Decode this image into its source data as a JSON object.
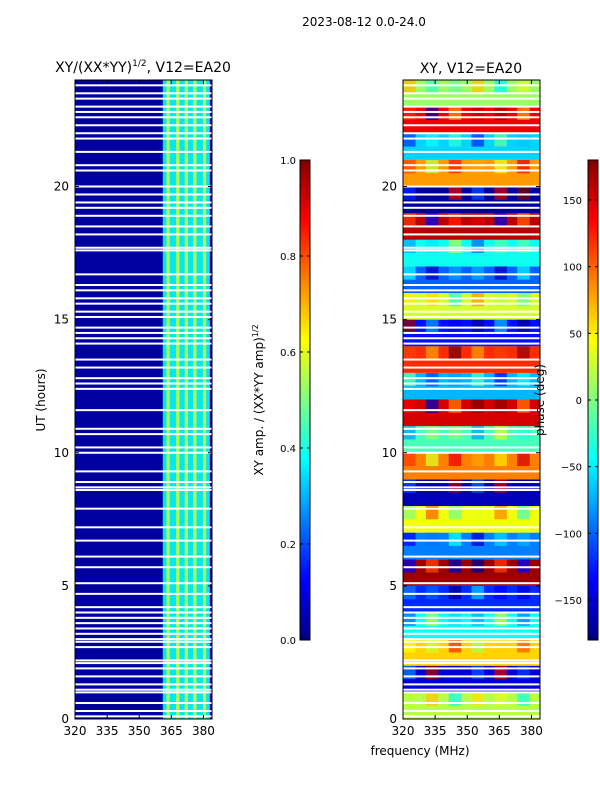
{
  "suptitle": "2023-08-12 0.0-24.0",
  "xlabel_shared": "frequency (MHz)",
  "colors": {
    "jet": [
      "#00007f",
      "#0000ff",
      "#007fff",
      "#00ffff",
      "#7fff7f",
      "#ffff00",
      "#ff7f00",
      "#ff0000",
      "#7f0000"
    ],
    "gap": "#ffffff",
    "axis": "#000000"
  },
  "chart_data": [
    {
      "type": "heatmap",
      "title": "XY/(XX*YY)",
      "title_sup": "1/2",
      "title_suffix": ", V12=EA20",
      "xlabel": "",
      "ylabel": "UT (hours)",
      "xlim": [
        320,
        384
      ],
      "ylim": [
        0,
        24
      ],
      "xticks": [
        "320",
        "335",
        "350",
        "365",
        "380"
      ],
      "xtick_values": [
        320,
        335,
        350,
        365,
        380
      ],
      "yticks": [
        "0",
        "5",
        "10",
        "15",
        "20"
      ],
      "ytick_values": [
        0,
        5,
        10,
        15,
        20
      ],
      "colorbar": {
        "label": "XY amp. / (XX*YY amp)",
        "label_sup": "1/2",
        "range": [
          0.0,
          1.0
        ],
        "ticks": [
          "0.0",
          "0.2",
          "0.4",
          "0.6",
          "0.8",
          "1.0"
        ],
        "tick_values": [
          0.0,
          0.2,
          0.4,
          0.6,
          0.8,
          1.0
        ]
      },
      "background_value": 0.03,
      "signal_band_mhz": [
        361,
        383
      ],
      "signal_band_value": 0.38,
      "signal_band_lines_mhz": [
        363.5,
        368,
        372,
        376,
        380.5
      ],
      "signal_band_lines_value": 0.55,
      "gap_rows_hours": [
        0.1,
        0.3,
        0.6,
        1.0,
        1.1,
        1.3,
        1.6,
        1.9,
        2.1,
        2.2,
        2.7,
        2.9,
        3.0,
        3.2,
        3.4,
        3.6,
        3.8,
        4.0,
        4.2,
        4.7,
        5.1,
        5.7,
        6.1,
        6.7,
        7.2,
        7.9,
        8.6,
        8.7,
        8.9,
        9.3,
        10.0,
        10.2,
        10.7,
        10.9,
        11.6,
        12.4,
        12.6,
        12.8,
        13.2,
        13.5,
        14.1,
        14.3,
        14.5,
        14.7,
        15.1,
        15.3,
        15.6,
        15.8,
        16.1,
        16.3,
        16.7,
        17.6,
        17.7,
        18.2,
        18.5,
        18.9,
        19.2,
        19.4,
        19.7,
        20.0,
        20.6,
        20.8,
        21.3,
        21.8,
        22.0,
        22.3,
        22.6,
        22.8,
        23.0,
        23.3,
        23.5,
        23.8
      ]
    },
    {
      "type": "heatmap",
      "title": "XY, V12=EA20",
      "xlabel": "frequency (MHz)",
      "ylabel": "",
      "xlim": [
        320,
        384
      ],
      "ylim": [
        0,
        24
      ],
      "xticks": [
        "320",
        "335",
        "350",
        "365",
        "380"
      ],
      "xtick_values": [
        320,
        335,
        350,
        365,
        380
      ],
      "yticks": [
        "0",
        "5",
        "10",
        "15",
        "20"
      ],
      "ytick_values": [
        0,
        5,
        10,
        15,
        20
      ],
      "colorbar": {
        "label": "phase (deg)",
        "range": [
          -180,
          180
        ],
        "ticks": [
          "−150",
          "−100",
          "−50",
          "0",
          "50",
          "100",
          "150"
        ],
        "tick_values": [
          -150,
          -100,
          -50,
          0,
          50,
          100,
          150
        ]
      },
      "phase_row_hours": [
        0.5,
        1.5,
        2.5,
        3.5,
        4.5,
        5.5,
        6.5,
        7.5,
        8.5,
        9.5,
        10.5,
        11.5,
        12.5,
        13.5,
        14.5,
        15.5,
        16.5,
        17.5,
        18.5,
        19.5,
        20.5,
        21.5,
        22.5,
        23.5
      ],
      "phase_row_values": [
        20,
        -150,
        60,
        -40,
        -120,
        170,
        -90,
        40,
        -160,
        90,
        -20,
        150,
        -70,
        120,
        -130,
        30,
        -100,
        -40,
        160,
        -170,
        80,
        -60,
        140,
        10
      ],
      "gap_rows_hours": [
        0.1,
        0.3,
        0.6,
        1.0,
        1.1,
        1.3,
        1.6,
        1.9,
        2.1,
        2.2,
        2.7,
        2.9,
        3.0,
        3.2,
        3.4,
        3.6,
        3.8,
        4.0,
        4.2,
        4.7,
        5.1,
        5.7,
        6.1,
        6.7,
        7.2,
        7.9,
        8.6,
        8.7,
        8.9,
        9.3,
        10.0,
        10.2,
        10.7,
        10.9,
        11.6,
        12.4,
        12.6,
        12.8,
        13.2,
        13.5,
        14.1,
        14.3,
        14.5,
        14.7,
        15.1,
        15.3,
        15.6,
        15.8,
        16.1,
        16.3,
        16.7,
        17.6,
        17.7,
        18.2,
        18.5,
        18.9,
        19.2,
        19.4,
        19.7,
        20.0,
        20.6,
        20.8,
        21.3,
        21.8,
        22.0,
        22.3,
        22.6,
        22.8,
        23.0,
        23.3,
        23.5,
        23.8
      ]
    }
  ]
}
